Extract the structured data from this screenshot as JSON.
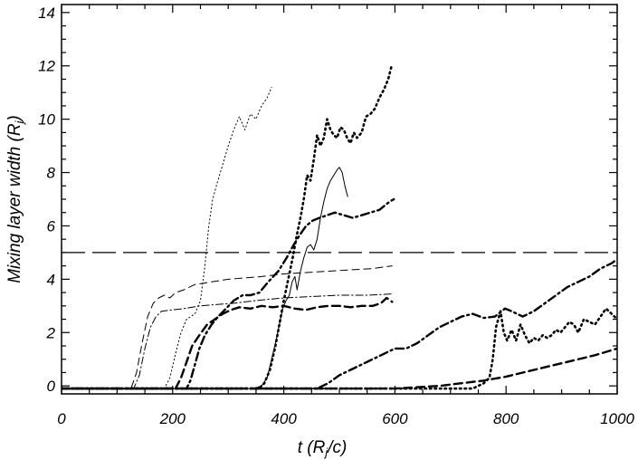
{
  "chart_data": {
    "type": "line",
    "xlabel": "t (R_j/c)",
    "ylabel": "Mixing layer width (R_j)",
    "xlim": [
      0,
      1000
    ],
    "ylim": [
      -0.3,
      14.3
    ],
    "xticks": [
      "0",
      "200",
      "400",
      "600",
      "800",
      "1000"
    ],
    "yticks": [
      "0",
      "2",
      "4",
      "6",
      "8",
      "10",
      "12",
      "14"
    ],
    "grid": false,
    "legend": "none",
    "reference_line": {
      "y": 5.0,
      "style": "long-dash"
    },
    "series": [
      {
        "style": "thin-dotted",
        "points": [
          [
            0,
            -0.1
          ],
          [
            185,
            -0.1
          ],
          [
            195,
            0.3
          ],
          [
            205,
            1.2
          ],
          [
            215,
            2.0
          ],
          [
            225,
            2.5
          ],
          [
            240,
            2.7
          ],
          [
            250,
            3.2
          ],
          [
            258,
            4.5
          ],
          [
            265,
            6.0
          ],
          [
            272,
            7.0
          ],
          [
            280,
            7.6
          ],
          [
            290,
            8.3
          ],
          [
            300,
            9.0
          ],
          [
            310,
            9.6
          ],
          [
            320,
            10.1
          ],
          [
            330,
            9.6
          ],
          [
            340,
            10.2
          ],
          [
            350,
            10.0
          ],
          [
            360,
            10.5
          ],
          [
            370,
            10.8
          ],
          [
            378,
            11.2
          ]
        ]
      },
      {
        "style": "thin-dash",
        "points": [
          [
            0,
            -0.1
          ],
          [
            125,
            -0.1
          ],
          [
            135,
            0.5
          ],
          [
            145,
            1.6
          ],
          [
            155,
            2.6
          ],
          [
            165,
            3.1
          ],
          [
            175,
            3.3
          ],
          [
            185,
            3.4
          ],
          [
            195,
            3.3
          ],
          [
            205,
            3.5
          ],
          [
            220,
            3.6
          ],
          [
            240,
            3.8
          ],
          [
            270,
            3.9
          ],
          [
            300,
            4.0
          ],
          [
            330,
            4.05
          ],
          [
            360,
            4.1
          ],
          [
            400,
            4.2
          ],
          [
            440,
            4.25
          ],
          [
            480,
            4.3
          ],
          [
            520,
            4.35
          ],
          [
            560,
            4.4
          ],
          [
            595,
            4.5
          ]
        ]
      },
      {
        "style": "thin-dash-dot",
        "points": [
          [
            0,
            -0.1
          ],
          [
            130,
            -0.1
          ],
          [
            140,
            0.4
          ],
          [
            150,
            1.4
          ],
          [
            160,
            2.2
          ],
          [
            170,
            2.6
          ],
          [
            180,
            2.8
          ],
          [
            200,
            2.85
          ],
          [
            220,
            2.9
          ],
          [
            250,
            3.0
          ],
          [
            280,
            3.05
          ],
          [
            310,
            3.1
          ],
          [
            350,
            3.2
          ],
          [
            400,
            3.3
          ],
          [
            450,
            3.35
          ],
          [
            500,
            3.4
          ],
          [
            550,
            3.4
          ],
          [
            595,
            3.45
          ]
        ]
      },
      {
        "style": "thin-solid",
        "points": [
          [
            0,
            -0.1
          ],
          [
            345,
            -0.1
          ],
          [
            360,
            0.0
          ],
          [
            370,
            0.3
          ],
          [
            378,
            1.0
          ],
          [
            386,
            1.7
          ],
          [
            392,
            2.3
          ],
          [
            398,
            2.9
          ],
          [
            404,
            3.2
          ],
          [
            410,
            3.4
          ],
          [
            415,
            3.9
          ],
          [
            420,
            4.1
          ],
          [
            424,
            3.6
          ],
          [
            430,
            4.3
          ],
          [
            436,
            4.8
          ],
          [
            442,
            5.2
          ],
          [
            448,
            5.3
          ],
          [
            454,
            5.1
          ],
          [
            460,
            5.5
          ],
          [
            466,
            6.3
          ],
          [
            472,
            6.9
          ],
          [
            478,
            7.4
          ],
          [
            484,
            7.7
          ],
          [
            490,
            7.9
          ],
          [
            496,
            8.1
          ],
          [
            500,
            8.2
          ],
          [
            505,
            8.0
          ],
          [
            510,
            7.5
          ],
          [
            515,
            7.1
          ]
        ]
      },
      {
        "style": "thick-dotted",
        "points": [
          [
            0,
            -0.1
          ],
          [
            355,
            -0.1
          ],
          [
            365,
            0.1
          ],
          [
            375,
            0.6
          ],
          [
            385,
            1.5
          ],
          [
            392,
            2.3
          ],
          [
            400,
            3.2
          ],
          [
            408,
            4.0
          ],
          [
            416,
            4.8
          ],
          [
            424,
            5.7
          ],
          [
            430,
            6.3
          ],
          [
            436,
            7.0
          ],
          [
            442,
            7.9
          ],
          [
            448,
            7.7
          ],
          [
            454,
            8.5
          ],
          [
            460,
            9.4
          ],
          [
            466,
            9.0
          ],
          [
            472,
            9.3
          ],
          [
            478,
            10.0
          ],
          [
            484,
            9.6
          ],
          [
            490,
            9.4
          ],
          [
            496,
            9.3
          ],
          [
            502,
            9.7
          ],
          [
            508,
            9.6
          ],
          [
            514,
            9.3
          ],
          [
            520,
            9.1
          ],
          [
            526,
            9.5
          ],
          [
            532,
            9.3
          ],
          [
            540,
            9.5
          ],
          [
            548,
            10.1
          ],
          [
            556,
            10.2
          ],
          [
            564,
            10.4
          ],
          [
            572,
            10.8
          ],
          [
            580,
            11.1
          ],
          [
            588,
            11.5
          ],
          [
            594,
            12.0
          ]
        ]
      },
      {
        "style": "thick-dash-dot",
        "points": [
          [
            0,
            -0.1
          ],
          [
            225,
            -0.1
          ],
          [
            232,
            0.2
          ],
          [
            240,
            0.8
          ],
          [
            248,
            1.4
          ],
          [
            258,
            1.9
          ],
          [
            270,
            2.3
          ],
          [
            282,
            2.6
          ],
          [
            296,
            2.9
          ],
          [
            310,
            3.2
          ],
          [
            326,
            3.4
          ],
          [
            340,
            3.4
          ],
          [
            356,
            3.5
          ],
          [
            372,
            3.9
          ],
          [
            390,
            4.3
          ],
          [
            405,
            4.8
          ],
          [
            418,
            5.3
          ],
          [
            430,
            5.7
          ],
          [
            440,
            6.0
          ],
          [
            452,
            6.2
          ],
          [
            464,
            6.3
          ],
          [
            478,
            6.4
          ],
          [
            492,
            6.5
          ],
          [
            508,
            6.4
          ],
          [
            524,
            6.3
          ],
          [
            540,
            6.4
          ],
          [
            556,
            6.5
          ],
          [
            572,
            6.6
          ],
          [
            590,
            6.9
          ],
          [
            598,
            7.0
          ]
        ]
      },
      {
        "style": "thick-dash",
        "points": [
          [
            0,
            -0.1
          ],
          [
            205,
            -0.1
          ],
          [
            215,
            0.3
          ],
          [
            225,
            0.9
          ],
          [
            235,
            1.5
          ],
          [
            248,
            1.9
          ],
          [
            262,
            2.3
          ],
          [
            276,
            2.5
          ],
          [
            290,
            2.7
          ],
          [
            305,
            2.85
          ],
          [
            320,
            2.95
          ],
          [
            340,
            2.9
          ],
          [
            360,
            3.0
          ],
          [
            380,
            2.95
          ],
          [
            400,
            3.0
          ],
          [
            420,
            2.9
          ],
          [
            440,
            2.85
          ],
          [
            460,
            2.95
          ],
          [
            480,
            3.0
          ],
          [
            500,
            3.0
          ],
          [
            520,
            2.95
          ],
          [
            540,
            3.0
          ],
          [
            560,
            3.0
          ],
          [
            575,
            3.1
          ],
          [
            585,
            3.3
          ],
          [
            595,
            3.15
          ]
        ]
      },
      {
        "style": "thick-dash-dot",
        "points": [
          [
            0,
            -0.1
          ],
          [
            460,
            -0.1
          ],
          [
            480,
            0.1
          ],
          [
            500,
            0.4
          ],
          [
            520,
            0.6
          ],
          [
            540,
            0.8
          ],
          [
            560,
            1.0
          ],
          [
            580,
            1.2
          ],
          [
            600,
            1.4
          ],
          [
            620,
            1.4
          ],
          [
            640,
            1.6
          ],
          [
            660,
            1.9
          ],
          [
            680,
            2.2
          ],
          [
            700,
            2.4
          ],
          [
            720,
            2.6
          ],
          [
            740,
            2.7
          ],
          [
            760,
            2.55
          ],
          [
            780,
            2.6
          ],
          [
            798,
            2.9
          ],
          [
            810,
            2.8
          ],
          [
            830,
            2.6
          ],
          [
            850,
            2.8
          ],
          [
            870,
            3.1
          ],
          [
            890,
            3.4
          ],
          [
            910,
            3.7
          ],
          [
            930,
            3.9
          ],
          [
            950,
            4.1
          ],
          [
            970,
            4.4
          ],
          [
            990,
            4.6
          ],
          [
            1000,
            4.75
          ]
        ]
      },
      {
        "style": "thick-dotted",
        "points": [
          [
            0,
            -0.1
          ],
          [
            740,
            -0.1
          ],
          [
            760,
            0.1
          ],
          [
            770,
            0.3
          ],
          [
            776,
            1.0
          ],
          [
            782,
            2.2
          ],
          [
            790,
            2.8
          ],
          [
            796,
            2.0
          ],
          [
            802,
            1.7
          ],
          [
            810,
            2.1
          ],
          [
            818,
            1.7
          ],
          [
            826,
            2.3
          ],
          [
            834,
            1.9
          ],
          [
            842,
            1.6
          ],
          [
            850,
            1.8
          ],
          [
            858,
            1.7
          ],
          [
            866,
            1.9
          ],
          [
            874,
            1.8
          ],
          [
            882,
            1.9
          ],
          [
            890,
            2.1
          ],
          [
            898,
            2.0
          ],
          [
            906,
            2.2
          ],
          [
            914,
            2.4
          ],
          [
            922,
            2.3
          ],
          [
            930,
            2.0
          ],
          [
            940,
            2.5
          ],
          [
            950,
            2.4
          ],
          [
            960,
            2.3
          ],
          [
            970,
            2.6
          ],
          [
            980,
            2.9
          ],
          [
            990,
            2.7
          ],
          [
            1000,
            2.5
          ]
        ]
      },
      {
        "style": "thick-dash",
        "points": [
          [
            0,
            -0.1
          ],
          [
            600,
            -0.1
          ],
          [
            640,
            -0.05
          ],
          [
            680,
            0.0
          ],
          [
            720,
            0.1
          ],
          [
            760,
            0.2
          ],
          [
            800,
            0.35
          ],
          [
            840,
            0.55
          ],
          [
            880,
            0.75
          ],
          [
            920,
            0.95
          ],
          [
            960,
            1.15
          ],
          [
            1000,
            1.4
          ]
        ]
      }
    ]
  }
}
